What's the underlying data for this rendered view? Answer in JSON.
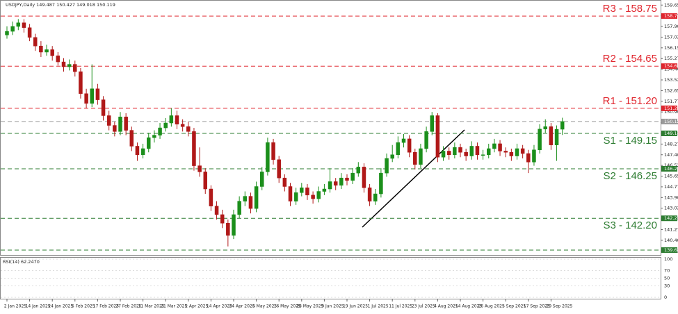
{
  "chart_data": {
    "type": "candlestick",
    "title": "USDJPY,Daily  149.487 150.427 149.018 150.119",
    "categories": [
      "2 Jan 2025",
      null,
      null,
      null,
      "14 Jan 2025",
      null,
      null,
      null,
      "24 Jan 2025",
      null,
      null,
      null,
      "5 Feb 2025",
      null,
      null,
      null,
      "17 Feb 2025",
      null,
      null,
      null,
      "27 Feb 2025",
      null,
      null,
      null,
      "11 Mar 2025",
      null,
      null,
      null,
      "21 Mar 2025",
      null,
      null,
      null,
      "2 Apr 2025",
      null,
      null,
      null,
      "14 Apr 2025",
      null,
      null,
      null,
      "24 Apr 2025",
      null,
      null,
      null,
      "6 May 2025",
      null,
      null,
      null,
      "16 May 2025",
      null,
      null,
      null,
      "28 May 2025",
      null,
      null,
      null,
      "9 Jun 2025",
      null,
      null,
      null,
      "19 Jun 2025",
      null,
      null,
      null,
      "1 Jul 2025",
      null,
      null,
      null,
      "11 Jul 2025",
      null,
      null,
      null,
      "23 Jul 2025",
      null,
      null,
      null,
      "4 Aug 2025",
      null,
      null,
      null,
      "14 Aug 2025",
      null,
      null,
      null,
      "26 Aug 2025",
      null,
      null,
      null,
      "5 Sep 2025",
      null,
      null,
      null,
      "17 Sep 2025",
      null,
      null,
      null,
      "29 Sep 2025",
      null,
      null
    ],
    "candles": {
      "open": [
        157.2,
        157.5,
        157.9,
        158.2,
        157.8,
        157.0,
        156.3,
        155.8,
        156.0,
        155.5,
        155.0,
        154.6,
        154.8,
        154.2,
        152.4,
        151.6,
        152.8,
        151.9,
        150.6,
        149.8,
        149.3,
        150.5,
        149.4,
        148.1,
        147.4,
        147.9,
        148.8,
        149.0,
        149.6,
        150.0,
        150.6,
        149.9,
        149.7,
        149.3,
        146.5,
        146.0,
        144.6,
        143.2,
        142.5,
        141.8,
        140.8,
        142.5,
        143.6,
        144.0,
        143.0,
        144.8,
        146.0,
        148.4,
        147.0,
        145.5,
        144.8,
        143.6,
        144.3,
        144.7,
        144.1,
        143.8,
        144.4,
        144.6,
        145.2,
        144.9,
        145.5,
        145.3,
        145.9,
        146.4,
        144.7,
        143.6,
        144.2,
        145.9,
        147.1,
        147.4,
        148.4,
        148.7,
        147.6,
        146.6,
        147.9,
        149.3,
        150.6,
        147.2,
        147.7,
        147.4,
        148.0,
        147.6,
        147.3,
        148.1,
        147.4,
        147.4,
        147.9,
        148.3,
        147.7,
        147.6,
        147.3,
        147.9,
        147.5,
        146.8,
        147.8,
        149.5,
        149.7,
        148.2,
        149.487
      ],
      "high": [
        157.9,
        158.3,
        158.5,
        158.5,
        158.1,
        157.3,
        156.7,
        156.4,
        156.3,
        155.8,
        155.3,
        155.2,
        155.1,
        154.5,
        152.8,
        154.8,
        153.2,
        152.2,
        151.0,
        150.1,
        150.9,
        150.8,
        149.7,
        148.4,
        148.3,
        149.2,
        149.4,
        150.0,
        150.4,
        151.2,
        151.0,
        150.3,
        150.1,
        149.6,
        148.0,
        146.3,
        144.9,
        143.6,
        142.9,
        142.1,
        142.9,
        144.0,
        144.4,
        144.3,
        145.2,
        146.4,
        148.8,
        148.7,
        147.3,
        145.8,
        145.1,
        144.7,
        145.1,
        145.0,
        144.4,
        144.8,
        145.0,
        146.3,
        145.5,
        145.9,
        145.8,
        146.3,
        146.8,
        146.7,
        145.0,
        144.6,
        146.3,
        147.5,
        148.2,
        148.9,
        149.1,
        149.0,
        147.9,
        148.3,
        149.7,
        150.9,
        150.8,
        148.1,
        148.0,
        148.4,
        148.3,
        147.9,
        148.5,
        148.4,
        147.8,
        148.3,
        148.7,
        148.6,
        148.0,
        147.9,
        148.3,
        148.2,
        147.8,
        148.2,
        149.9,
        150.3,
        150.0,
        149.8,
        150.427
      ],
      "low": [
        156.9,
        157.2,
        157.6,
        157.4,
        156.7,
        155.9,
        155.4,
        155.5,
        155.1,
        154.7,
        154.2,
        154.3,
        153.8,
        152.0,
        151.2,
        151.3,
        151.5,
        150.2,
        149.4,
        148.9,
        149.0,
        149.0,
        147.7,
        146.9,
        147.1,
        147.6,
        148.4,
        148.7,
        149.3,
        149.7,
        149.5,
        149.3,
        148.9,
        146.1,
        145.6,
        144.2,
        142.8,
        142.1,
        141.4,
        139.9,
        140.5,
        142.2,
        143.2,
        142.6,
        142.7,
        144.5,
        145.7,
        146.6,
        145.1,
        144.4,
        143.2,
        143.3,
        144.0,
        143.7,
        143.4,
        143.5,
        144.1,
        144.3,
        144.5,
        144.6,
        144.9,
        145.0,
        145.6,
        144.3,
        143.2,
        143.3,
        143.9,
        145.6,
        146.8,
        147.1,
        148.0,
        147.2,
        146.2,
        146.3,
        147.6,
        149.0,
        146.8,
        146.9,
        147.0,
        147.1,
        147.2,
        146.9,
        147.0,
        147.0,
        147.0,
        147.1,
        147.6,
        147.3,
        147.2,
        146.9,
        147.0,
        147.1,
        145.9,
        146.5,
        147.5,
        149.2,
        147.8,
        146.9,
        149.018
      ],
      "close": [
        157.5,
        157.9,
        158.2,
        157.8,
        157.0,
        156.3,
        155.8,
        156.0,
        155.5,
        155.0,
        154.6,
        154.8,
        154.2,
        152.4,
        151.6,
        152.8,
        151.9,
        150.6,
        149.8,
        149.3,
        150.5,
        149.4,
        148.1,
        147.4,
        147.9,
        148.8,
        149.0,
        149.6,
        150.0,
        150.6,
        149.9,
        149.7,
        149.3,
        146.5,
        146.0,
        144.6,
        143.2,
        142.5,
        141.8,
        140.8,
        142.5,
        143.6,
        144.0,
        143.0,
        144.8,
        146.0,
        148.4,
        147.0,
        145.5,
        144.8,
        143.6,
        144.3,
        144.7,
        144.1,
        143.8,
        144.4,
        144.6,
        145.2,
        144.9,
        145.5,
        145.3,
        145.9,
        146.4,
        144.7,
        143.6,
        144.2,
        145.9,
        147.1,
        147.4,
        148.4,
        148.7,
        147.6,
        146.6,
        147.9,
        149.3,
        150.6,
        147.2,
        147.7,
        147.4,
        148.0,
        147.6,
        147.3,
        148.1,
        147.4,
        147.4,
        147.9,
        148.3,
        147.7,
        147.6,
        147.3,
        147.9,
        147.5,
        146.8,
        147.8,
        149.5,
        149.7,
        148.2,
        149.487,
        150.119
      ]
    },
    "up_color": "#1b8f1b",
    "down_color": "#b01818",
    "ylim": [
      139.2,
      159.95
    ],
    "yticks": [
      {
        "value": 159.65,
        "label": "159.650"
      },
      {
        "value": 158.775,
        "label": "158.775"
      },
      {
        "value": 157.9,
        "label": "157.900"
      },
      {
        "value": 157.025,
        "label": "157.025"
      },
      {
        "value": 156.15,
        "label": "156.150"
      },
      {
        "value": 155.275,
        "label": "155.275"
      },
      {
        "value": 154.4,
        "label": "154.400"
      },
      {
        "value": 153.525,
        "label": "153.525"
      },
      {
        "value": 152.65,
        "label": "152.650"
      },
      {
        "value": 151.775,
        "label": "151.775"
      },
      {
        "value": 150.9,
        "label": "150.900"
      },
      {
        "value": 150.025,
        "label": "150.025"
      },
      {
        "value": 149.15,
        "label": "149.150"
      },
      {
        "value": 148.275,
        "label": "148.275"
      },
      {
        "value": 147.4,
        "label": "147.400"
      },
      {
        "value": 146.525,
        "label": "146.525"
      },
      {
        "value": 145.65,
        "label": "145.650"
      },
      {
        "value": 144.775,
        "label": "144.775"
      },
      {
        "value": 143.9,
        "label": "143.900"
      },
      {
        "value": 143.025,
        "label": "143.025"
      },
      {
        "value": 142.15,
        "label": "142.150"
      },
      {
        "value": 141.275,
        "label": "141.275"
      },
      {
        "value": 140.4,
        "label": "140.400"
      },
      {
        "value": 139.525,
        "label": "139.525"
      }
    ],
    "levels": [
      {
        "label": "R3 - 158.75",
        "value": 158.75,
        "marker": "158.750",
        "color": "#e0262e"
      },
      {
        "label": "R2 - 154.65",
        "value": 154.65,
        "marker": "154.650",
        "color": "#e0262e"
      },
      {
        "label": "R1 - 151.20",
        "value": 151.2,
        "marker": "151.200",
        "color": "#e0262e"
      },
      {
        "value": 150.119,
        "marker": "150.119",
        "color": "#9a9a9a"
      },
      {
        "label": "S1 - 149.15",
        "value": 149.15,
        "marker": "149.150",
        "color": "#2e7d32"
      },
      {
        "label": "S2 - 146.25",
        "value": 146.25,
        "marker": "146.250",
        "color": "#2e7d32"
      },
      {
        "label": "S3 - 142.20",
        "value": 142.2,
        "marker": "142.200",
        "color": "#2e7d32"
      },
      {
        "value": 139.6,
        "marker": "139.600",
        "color": "#2e7d32"
      }
    ],
    "rsi": {
      "label": "RSI(14) 62.2470",
      "ylim": [
        0,
        100
      ],
      "yticks": [
        100,
        70,
        50,
        30,
        0
      ]
    }
  }
}
